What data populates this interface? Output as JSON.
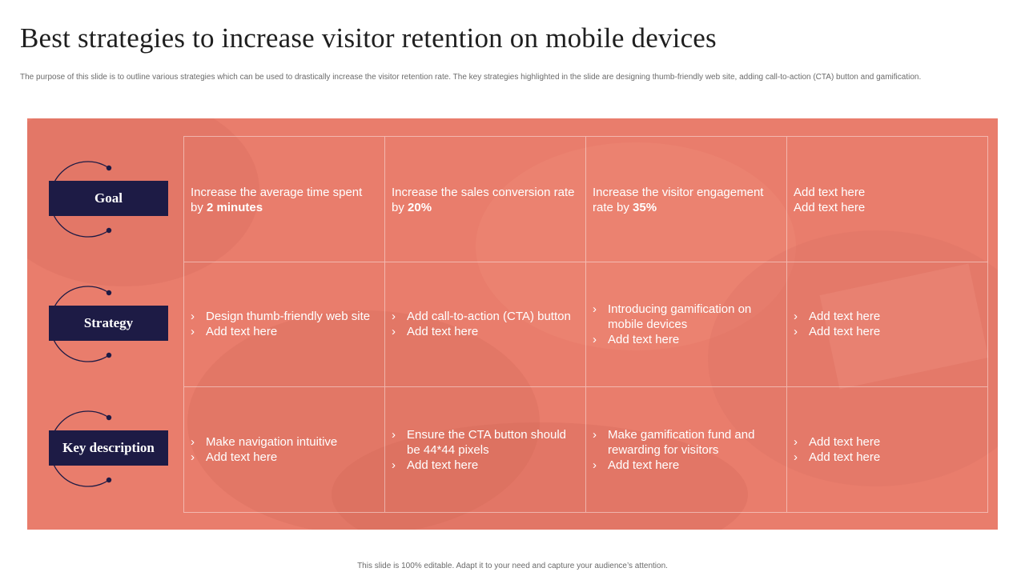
{
  "title": "Best strategies to increase visitor retention on mobile devices",
  "subtitle": "The purpose of this slide is to outline various strategies which can be used to drastically increase the visitor retention rate. The key strategies highlighted in the slide are designing thumb-friendly web site, adding call-to-action (CTA) button and gamification.",
  "rows": [
    {
      "label": "Goal"
    },
    {
      "label": "Strategy"
    },
    {
      "label": "Key description"
    }
  ],
  "goals": [
    {
      "text": "Increase the average time spent by ",
      "bold": "2 minutes"
    },
    {
      "text": "Increase the sales conversion rate by ",
      "bold": "20%"
    },
    {
      "text": "Increase the visitor engagement rate by ",
      "bold": "35%"
    },
    {
      "lines": [
        "Add text here",
        "Add text here"
      ]
    }
  ],
  "strategy": [
    [
      "Design thumb-friendly web site",
      "Add text here"
    ],
    [
      "Add call-to-action (CTA) button",
      "Add text here"
    ],
    [
      "Introducing gamification on mobile devices",
      "Add text here"
    ],
    [
      "Add text here",
      "Add text here"
    ]
  ],
  "key_description": [
    [
      "Make navigation intuitive",
      "Add text here"
    ],
    [
      "Ensure the CTA button should be 44*44 pixels",
      "Add text here"
    ],
    [
      "Make gamification fund and rewarding for visitors",
      "Add text here"
    ],
    [
      "Add text here",
      "Add text here"
    ]
  ],
  "bullet_glyph": "›",
  "colors": {
    "panel": "#e97d6c",
    "label_box": "#1d1b45",
    "text_on_panel": "#ffffff"
  },
  "footer": "This slide is 100% editable. Adapt it to your need and capture your audience’s attention."
}
